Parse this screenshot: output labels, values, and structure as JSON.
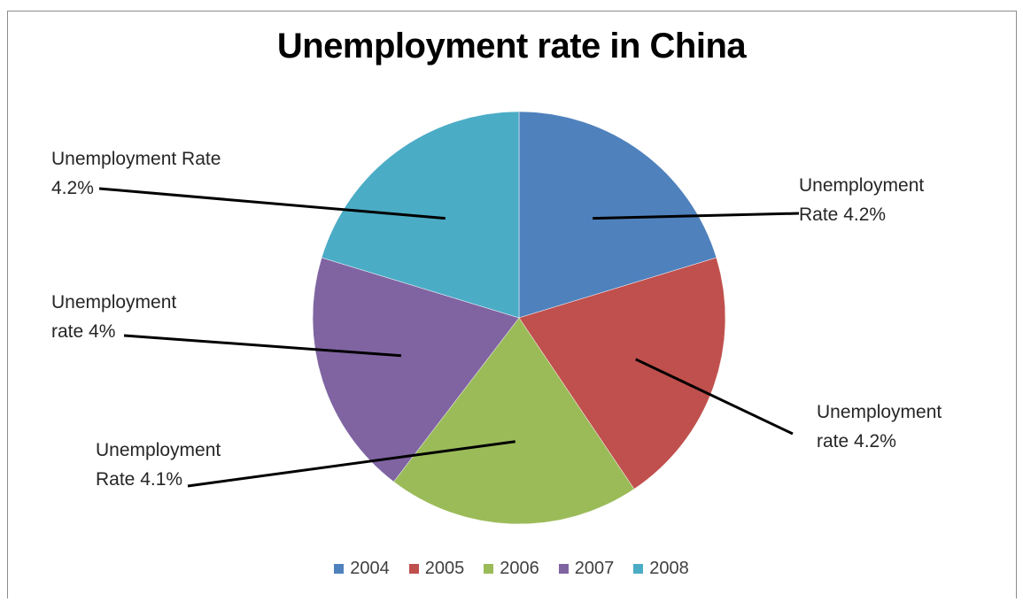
{
  "chart_data": {
    "type": "pie",
    "title": "Unemployment rate in China",
    "categories": [
      "2004",
      "2005",
      "2006",
      "2007",
      "2008"
    ],
    "values": [
      4.2,
      4.2,
      4.1,
      4.0,
      4.2
    ],
    "colors": [
      "#4f81bd",
      "#c0504d",
      "#9bbb59",
      "#8064a2",
      "#4bacc6"
    ],
    "data_labels": [
      [
        "Unemployment",
        "Rate 4.2%"
      ],
      [
        "Unemployment",
        "rate 4.2%"
      ],
      [
        "Unemployment",
        "Rate 4.1%"
      ],
      [
        "Unemployment",
        "rate 4%"
      ],
      [
        "Unemployment Rate",
        "4.2%"
      ]
    ],
    "legend_position": "bottom"
  }
}
